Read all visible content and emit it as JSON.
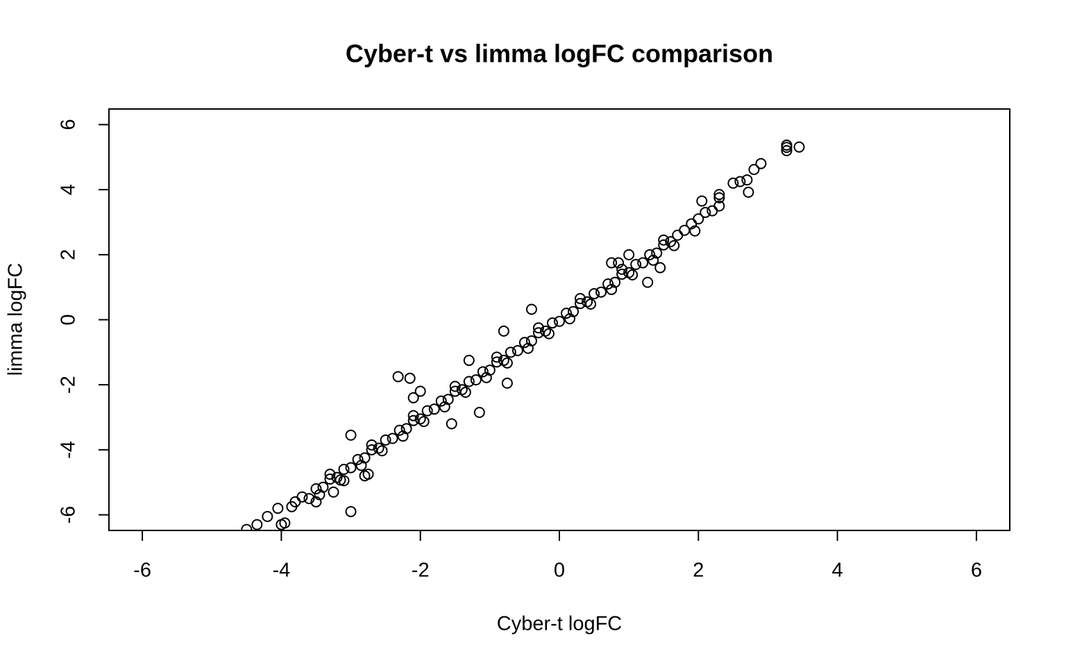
{
  "chart_data": {
    "type": "scatter",
    "title": "Cyber-t vs limma logFC comparison",
    "x_label": "Cyber-t logFC",
    "y_label": "limma logFC",
    "xlim": [
      -6.48,
      6.48
    ],
    "ylim": [
      -6.48,
      6.48
    ],
    "xticks": [
      -6,
      -4,
      -2,
      0,
      2,
      4,
      6
    ],
    "yticks": [
      -6,
      -4,
      -2,
      0,
      2,
      4,
      6
    ],
    "color": "#000000",
    "x": [
      3.27,
      3.27,
      3.27,
      3.45,
      2.9,
      2.8,
      2.7,
      2.6,
      2.5,
      2.72,
      2.3,
      2.3,
      2.05,
      1.45,
      1.27,
      -0.4,
      -2.32,
      -2.15,
      -1.3,
      -2.0,
      -1.15,
      -3.0,
      -3.0,
      -2.8,
      -2.75,
      -4.0,
      -3.95,
      -4.5,
      -4.35,
      -4.2,
      -4.05,
      -3.85,
      -3.5,
      -3.1,
      -3.25,
      -2.1,
      -1.55,
      -0.75,
      0.85,
      0.75,
      -0.8,
      1.0,
      -3.8,
      -3.7,
      -3.6,
      -3.5,
      -3.4,
      -3.3,
      -3.2,
      -3.1,
      -3.0,
      -2.9,
      -2.8,
      -2.7,
      -2.6,
      -2.5,
      -2.4,
      -2.3,
      -2.2,
      -2.1,
      -2.0,
      -1.9,
      -1.8,
      -1.7,
      -1.6,
      -1.5,
      -1.4,
      -1.3,
      -1.2,
      -1.1,
      -1.0,
      -0.9,
      -0.8,
      -0.7,
      -0.6,
      -0.5,
      -0.4,
      -0.3,
      -0.2,
      -0.1,
      0,
      0.1,
      0.2,
      0.3,
      0.4,
      0.5,
      0.6,
      0.7,
      0.8,
      0.9,
      1.0,
      1.1,
      1.2,
      1.3,
      1.4,
      1.5,
      1.6,
      1.7,
      1.8,
      1.9,
      2.0,
      2.1,
      2.2,
      2.3,
      -3.45,
      -3.15,
      -2.85,
      -2.55,
      -2.25,
      -1.95,
      -1.65,
      -1.35,
      -1.05,
      -0.75,
      -0.45,
      -0.15,
      0.15,
      0.45,
      0.75,
      1.05,
      1.35,
      1.65,
      1.95,
      -3.3,
      -2.7,
      -2.1,
      -1.5,
      -0.9,
      -0.3,
      0.3,
      0.9,
      1.5
    ],
    "y": [
      5.37,
      5.3,
      5.2,
      5.31,
      4.8,
      4.62,
      4.3,
      4.25,
      4.2,
      3.92,
      3.85,
      3.75,
      3.65,
      1.6,
      1.15,
      0.32,
      -1.75,
      -1.8,
      -1.25,
      -2.2,
      -2.85,
      -3.55,
      -5.9,
      -4.8,
      -4.75,
      -6.3,
      -6.25,
      -6.45,
      -6.3,
      -6.05,
      -5.8,
      -5.75,
      -5.6,
      -4.95,
      -5.3,
      -2.4,
      -3.2,
      -1.95,
      1.75,
      1.75,
      -0.35,
      2.0,
      -5.6,
      -5.45,
      -5.5,
      -5.2,
      -5.15,
      -4.9,
      -4.85,
      -4.6,
      -4.55,
      -4.3,
      -4.25,
      -4.0,
      -3.95,
      -3.7,
      -3.65,
      -3.4,
      -3.35,
      -3.1,
      -3.05,
      -2.8,
      -2.75,
      -2.5,
      -2.45,
      -2.2,
      -2.15,
      -1.9,
      -1.85,
      -1.6,
      -1.55,
      -1.3,
      -1.25,
      -1.0,
      -0.95,
      -0.7,
      -0.65,
      -0.4,
      -0.35,
      -0.1,
      -0.05,
      0.2,
      0.25,
      0.5,
      0.55,
      0.8,
      0.85,
      1.1,
      1.15,
      1.4,
      1.45,
      1.7,
      1.75,
      2.0,
      2.05,
      2.3,
      2.4,
      2.6,
      2.75,
      2.95,
      3.1,
      3.3,
      3.35,
      3.5,
      -5.38,
      -4.93,
      -4.48,
      -4.03,
      -3.58,
      -3.13,
      -2.68,
      -2.23,
      -1.78,
      -1.33,
      -0.88,
      -0.43,
      0.03,
      0.48,
      0.93,
      1.38,
      1.83,
      2.28,
      2.73,
      -4.75,
      -3.85,
      -2.95,
      -2.05,
      -1.15,
      -0.25,
      0.65,
      1.55,
      2.45
    ]
  }
}
